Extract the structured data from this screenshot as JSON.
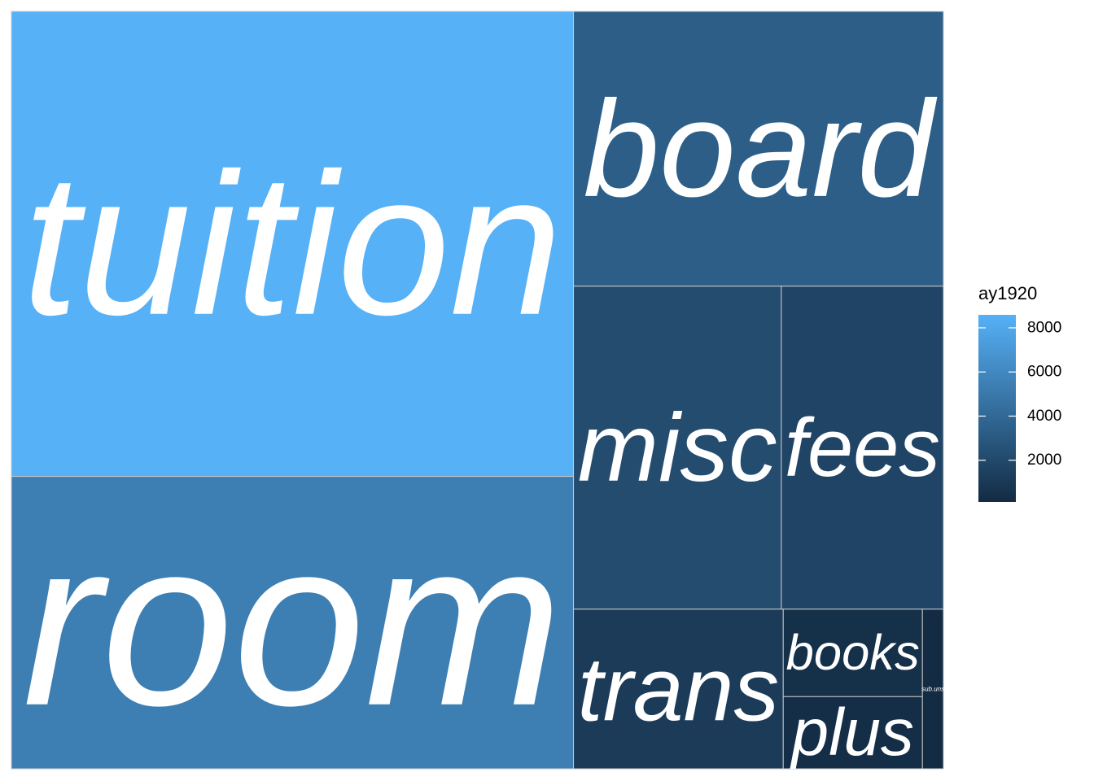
{
  "chart_data": {
    "type": "treemap",
    "fill_variable": "ay1920",
    "tiles": [
      {
        "label": "tuition",
        "value": 8588
      },
      {
        "label": "room",
        "value": 5400
      },
      {
        "label": "board",
        "value": 3340
      },
      {
        "label": "misc",
        "value": 2205
      },
      {
        "label": "fees",
        "value": 1720
      },
      {
        "label": "trans",
        "value": 1100
      },
      {
        "label": "books",
        "value": 400
      },
      {
        "label": "plus",
        "value": 330
      },
      {
        "label": "sub.uns",
        "value": 110
      }
    ],
    "legend": {
      "title": "ay1920",
      "ticks": [
        2000,
        4000,
        6000,
        8000
      ],
      "range": [
        110,
        8588
      ],
      "placement": "right"
    },
    "colors": {
      "low": "#132B43",
      "high": "#56B1F7",
      "tile_border": "#c8c8c8",
      "label": "#ffffff"
    }
  }
}
